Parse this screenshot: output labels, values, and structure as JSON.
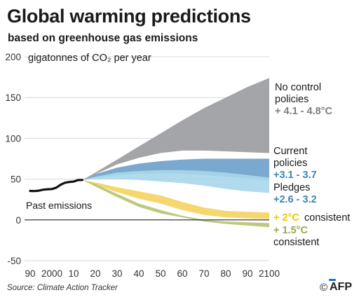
{
  "title": "Global warming predictions",
  "subtitle": "based on greenhouse gas emissions",
  "source": "Source: Climate Action Tracker",
  "credit": {
    "copyright": "©",
    "agency": "AFP"
  },
  "chart_data": {
    "type": "area",
    "ylabel": "gigatonnes of CO₂ per year",
    "ylim": [
      -50,
      200
    ],
    "yticks": [
      -50,
      0,
      50,
      100,
      150,
      200
    ],
    "xlim": [
      1990,
      2100
    ],
    "xticks": [
      1990,
      2000,
      2010,
      2020,
      2030,
      2040,
      2050,
      2060,
      2070,
      2080,
      2090,
      2100
    ],
    "xtick_labels": [
      "90",
      "2000",
      "10",
      "20",
      "30",
      "40",
      "50",
      "60",
      "70",
      "80",
      "90",
      "2100"
    ],
    "colors": {
      "past": "#111111",
      "no_control": "#a4a5a8",
      "current": "#6b9ec9",
      "pledges": "#a9d6ea",
      "two_c": "#f4d35e",
      "one_five_c": "#b6c370",
      "grid": "#d9d9d9",
      "zero": "#222222",
      "label_gray": "#7d7e80",
      "label_blue": "#3a86b5",
      "label_yellow": "#f2c400",
      "label_green": "#9aa847"
    },
    "past_emissions": {
      "label": "Past emissions",
      "x": [
        1990,
        1992,
        1994,
        1996,
        1998,
        2000,
        2002,
        2004,
        2006,
        2008,
        2010,
        2012,
        2014
      ],
      "y": [
        35.5,
        35.3,
        35.8,
        37,
        37.5,
        37.8,
        39.5,
        43,
        45.5,
        46.5,
        47,
        48.8,
        49
      ]
    },
    "scenarios": [
      {
        "key": "no_control",
        "labels": [
          "No control",
          "policies"
        ],
        "range_label": "+ 4.1 - 4.8°C",
        "label_color": "label_gray",
        "fill": "no_control",
        "x": [
          2014,
          2020,
          2030,
          2040,
          2050,
          2060,
          2070,
          2080,
          2090,
          2100
        ],
        "upper": [
          49,
          58,
          74,
          90,
          106,
          122,
          137,
          150,
          163,
          174
        ],
        "lower": [
          49,
          56,
          68,
          76,
          82,
          85,
          85,
          84,
          83,
          82
        ]
      },
      {
        "key": "current",
        "labels": [
          "Current",
          "policies"
        ],
        "range_label": "+3.1 - 3.7",
        "label_color": "label_blue",
        "fill": "current",
        "x": [
          2014,
          2020,
          2030,
          2040,
          2050,
          2060,
          2070,
          2080,
          2090,
          2100
        ],
        "upper": [
          49,
          56,
          64,
          69,
          72,
          74,
          75,
          75,
          75,
          75
        ],
        "lower": [
          49,
          52,
          55,
          56.5,
          57,
          56.5,
          55,
          53,
          51,
          49
        ]
      },
      {
        "key": "pledges",
        "labels": [
          "Pledges"
        ],
        "range_label": "+2.6 - 3.2",
        "label_color": "label_blue",
        "fill": "pledges",
        "x": [
          2014,
          2020,
          2030,
          2040,
          2050,
          2060,
          2070,
          2080,
          2090,
          2100
        ],
        "upper": [
          49,
          53,
          58,
          60,
          61,
          61,
          60,
          58,
          55,
          52
        ],
        "lower": [
          49,
          50,
          50,
          49,
          47,
          45,
          42,
          38,
          35,
          33
        ]
      },
      {
        "key": "two_c",
        "labels": [
          "consistent"
        ],
        "range_label": "+ 2°C",
        "label_color": "label_yellow",
        "fill": "two_c",
        "x": [
          2014,
          2020,
          2030,
          2040,
          2050,
          2060,
          2070,
          2080,
          2090,
          2100
        ],
        "upper": [
          49,
          46,
          40,
          35,
          30,
          22,
          15,
          11,
          10,
          9
        ],
        "lower": [
          49,
          43,
          34,
          26,
          20,
          12,
          6,
          3,
          2,
          1
        ]
      },
      {
        "key": "one_five_c",
        "labels": [
          "consistent"
        ],
        "range_label": "+ 1.5°C",
        "label_color": "label_green",
        "fill": "one_five_c",
        "x": [
          2014,
          2020,
          2030,
          2040,
          2050,
          2060,
          2070,
          2080,
          2090,
          2100
        ],
        "upper": [
          49,
          44,
          32,
          20,
          12,
          5,
          0,
          -2,
          -3,
          -4
        ],
        "lower": [
          49,
          41,
          28,
          16,
          8,
          3,
          -2,
          -5,
          -7,
          -9
        ]
      }
    ]
  }
}
